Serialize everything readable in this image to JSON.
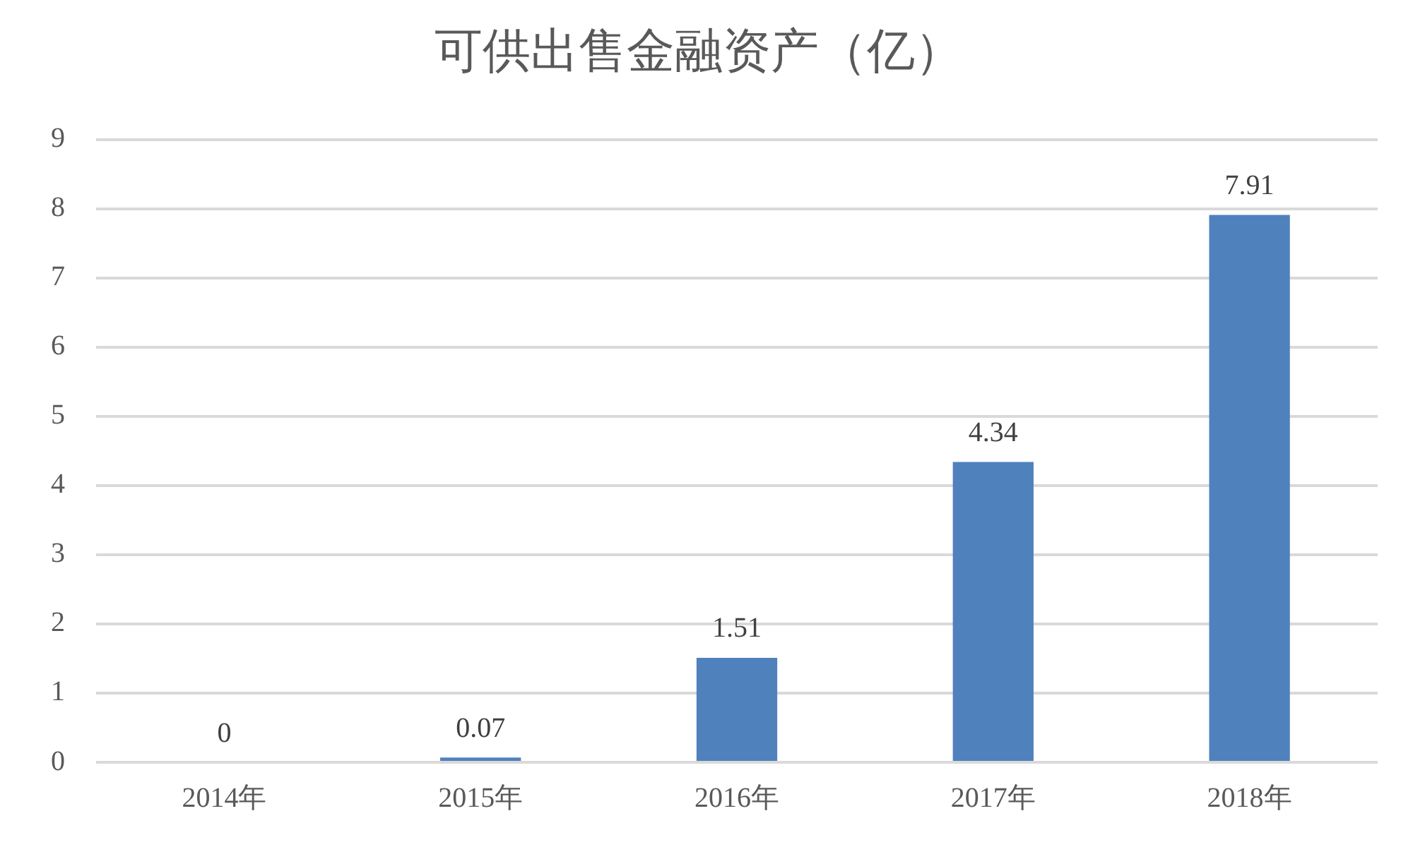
{
  "chart_data": {
    "type": "bar",
    "title": "可供出售金融资产（亿）",
    "categories": [
      "2014年",
      "2015年",
      "2016年",
      "2017年",
      "2018年"
    ],
    "values": [
      0,
      0.07,
      1.51,
      4.34,
      7.91
    ],
    "color": "#4f81bd",
    "ylim": [
      0,
      9
    ],
    "yticks": [
      0,
      1,
      2,
      3,
      4,
      5,
      6,
      7,
      8,
      9
    ],
    "grid": "y",
    "data_labels": true,
    "legend": false
  }
}
